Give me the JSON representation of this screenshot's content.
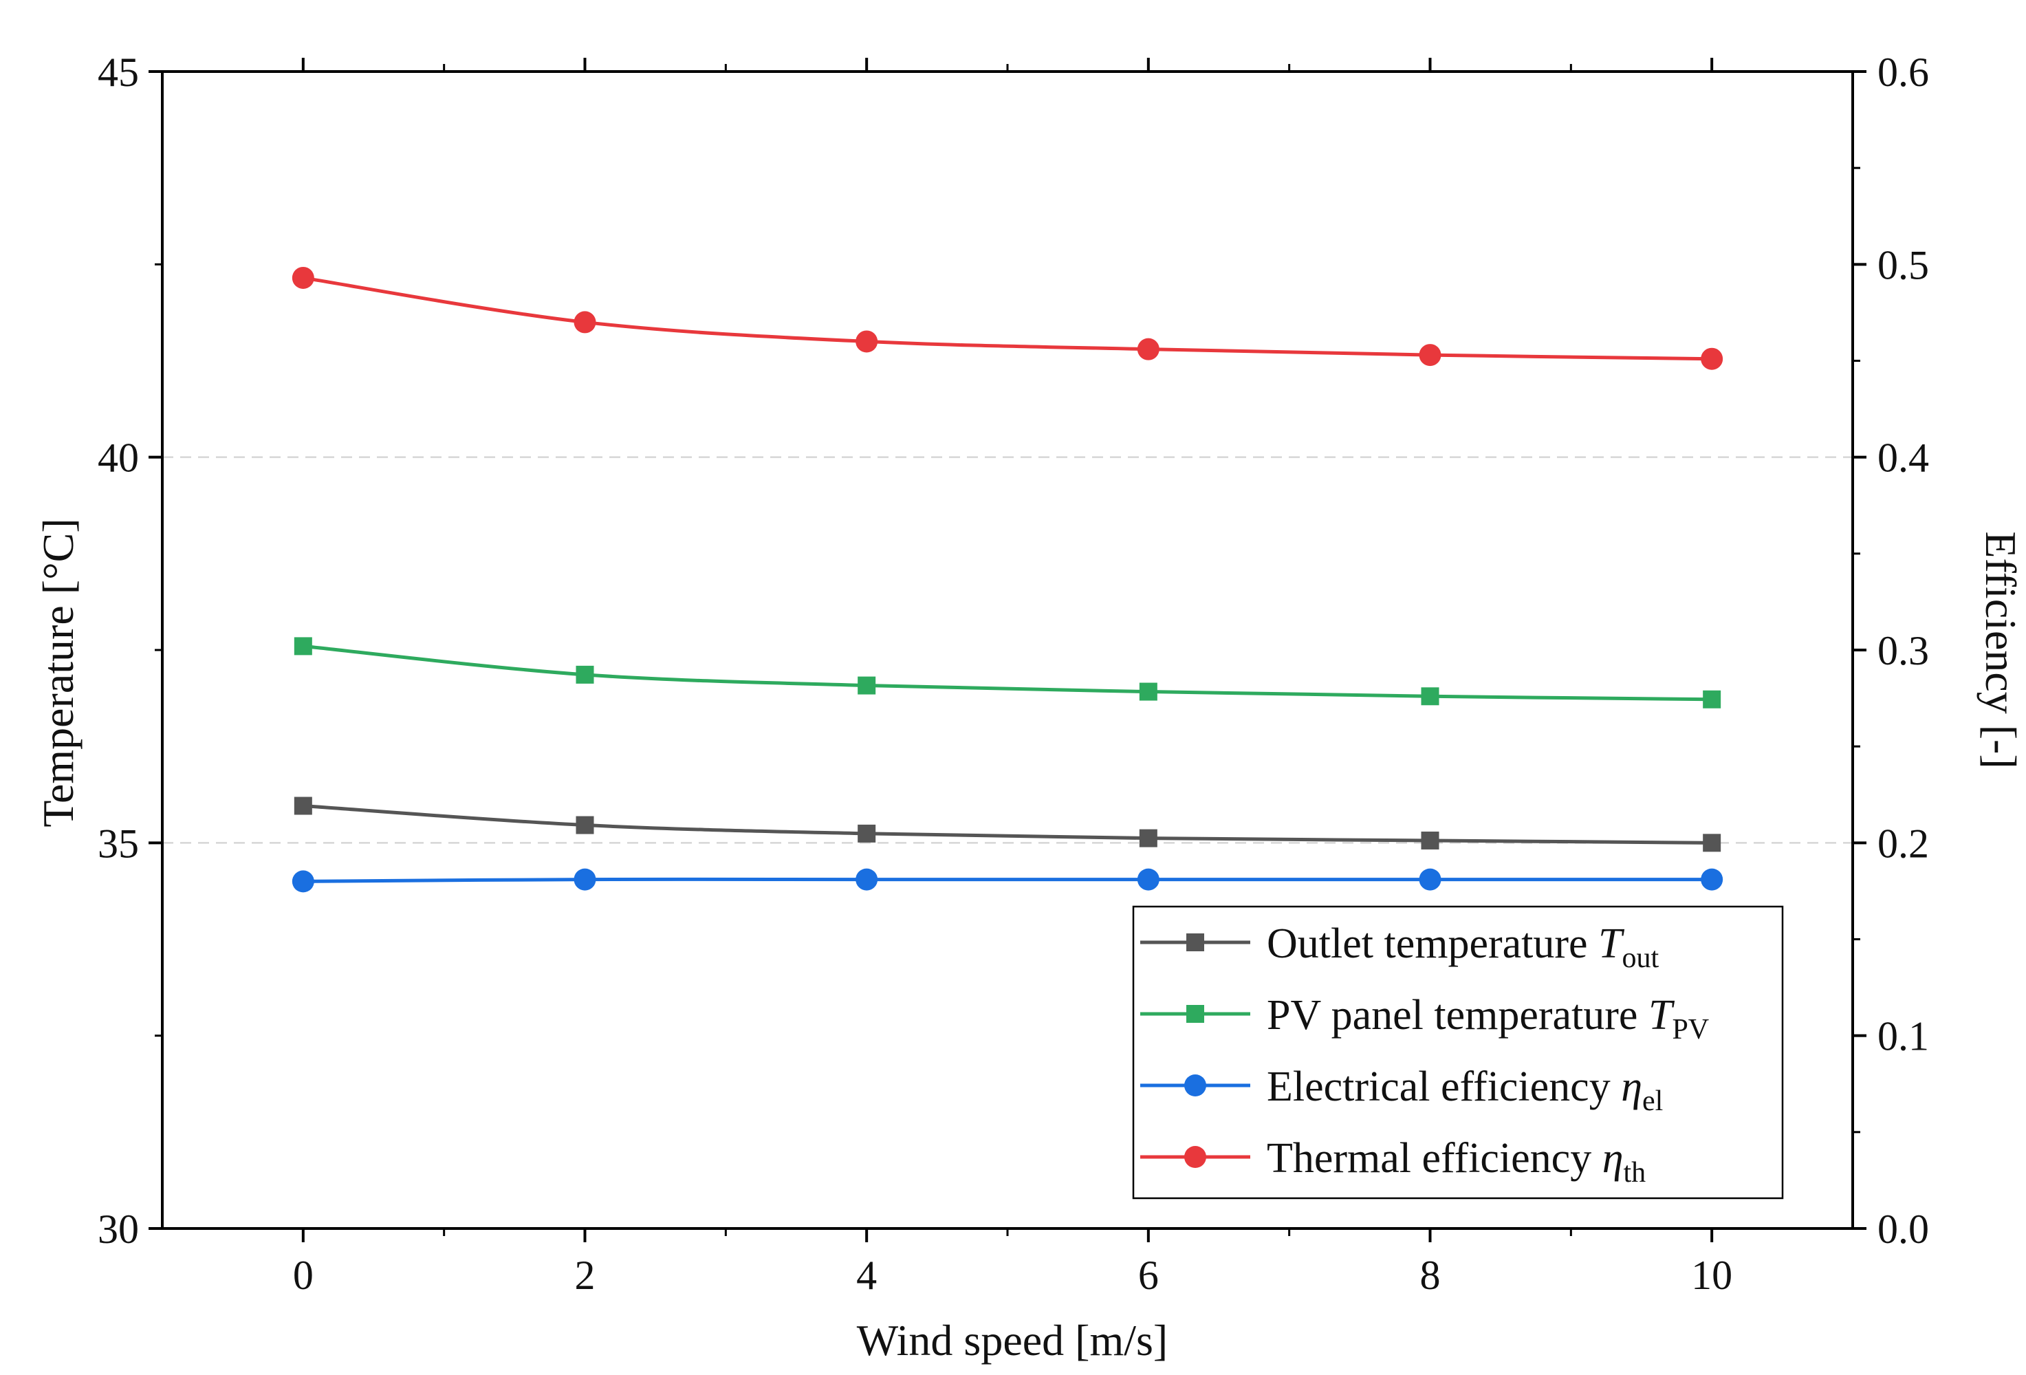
{
  "chart_data": {
    "type": "line",
    "title": "",
    "x": [
      0,
      2,
      4,
      6,
      8,
      10
    ],
    "xlabel": "Wind speed [m/s]",
    "xlim": [
      -1,
      11
    ],
    "xticks": [
      "0",
      "2",
      "4",
      "6",
      "8",
      "10"
    ],
    "ylabel_left": "Temperature [°C]",
    "ylim_left": [
      30,
      45
    ],
    "yticks_left": [
      "30",
      "35",
      "40",
      "45"
    ],
    "ylabel_right": "Efficiency [-]",
    "ylim_right": [
      0.0,
      0.6
    ],
    "yticks_right": [
      "0.0",
      "0.1",
      "0.2",
      "0.3",
      "0.4",
      "0.5",
      "0.6"
    ],
    "grid": "horizontal dashed at major left ticks",
    "legend_position": "bottom-right",
    "series": [
      {
        "name": "Outlet temperature",
        "symbol": "T",
        "subscript": "out",
        "axis": "left",
        "marker": "square",
        "color": "#555555",
        "values": [
          35.48,
          35.23,
          35.12,
          35.06,
          35.03,
          35.0
        ]
      },
      {
        "name": "PV panel temperature",
        "symbol": "T",
        "subscript": "PV",
        "axis": "left",
        "marker": "square",
        "color": "#2eaa5e",
        "values": [
          37.55,
          37.18,
          37.04,
          36.96,
          36.9,
          36.86
        ]
      },
      {
        "name": "Electrical efficiency",
        "symbol": "η",
        "subscript": "el",
        "axis": "right",
        "marker": "circle",
        "color": "#1a6fe0",
        "values": [
          0.18,
          0.181,
          0.181,
          0.181,
          0.181,
          0.181
        ]
      },
      {
        "name": "Thermal efficiency",
        "symbol": "η",
        "subscript": "th",
        "axis": "right",
        "marker": "circle",
        "color": "#e8383c",
        "values": [
          0.493,
          0.47,
          0.46,
          0.456,
          0.453,
          0.451
        ]
      }
    ]
  }
}
